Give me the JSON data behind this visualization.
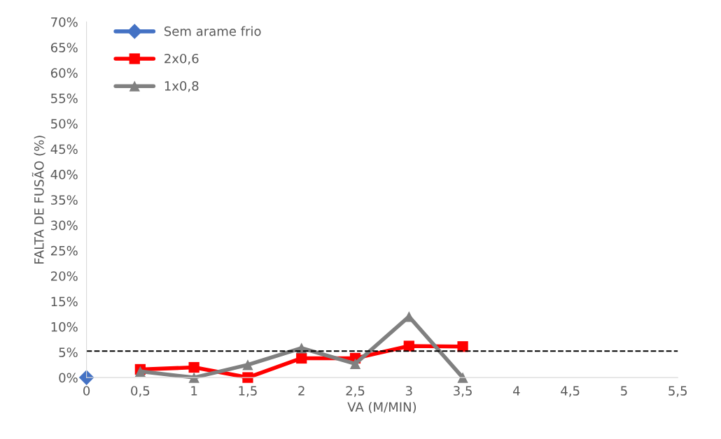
{
  "chart_data": {
    "type": "line",
    "xlabel": "VA (M/MIN)",
    "ylabel": "FALTA DE FUSÃO (%)",
    "xlim": [
      0,
      5.5
    ],
    "xticks": [
      0,
      {
        "value": 0.5,
        "label": "0,5"
      },
      1,
      {
        "value": 1.5,
        "label": "1,5"
      },
      2,
      {
        "value": 2.5,
        "label": "2,5"
      },
      3,
      {
        "value": 3.5,
        "label": "3,5"
      },
      4,
      {
        "value": 4.5,
        "label": "4,5"
      },
      5,
      {
        "value": 5.5,
        "label": "5,5"
      }
    ],
    "ylim": [
      0,
      70
    ],
    "yticks": [
      {
        "value": 0,
        "label": "0%"
      },
      {
        "value": 5,
        "label": "5%"
      },
      {
        "value": 10,
        "label": "10%"
      },
      {
        "value": 15,
        "label": "15%"
      },
      {
        "value": 20,
        "label": "20%"
      },
      {
        "value": 25,
        "label": "25%"
      },
      {
        "value": 30,
        "label": "30%"
      },
      {
        "value": 35,
        "label": "35%"
      },
      {
        "value": 40,
        "label": "40%"
      },
      {
        "value": 45,
        "label": "45%"
      },
      {
        "value": 50,
        "label": "50%"
      },
      {
        "value": 55,
        "label": "55%"
      },
      {
        "value": 60,
        "label": "60%"
      },
      {
        "value": 65,
        "label": "65%"
      },
      {
        "value": 70,
        "label": "70%"
      }
    ],
    "series": [
      {
        "name": "Sem arame frio",
        "color": "#4472c4",
        "marker": "diamond",
        "x": [
          0
        ],
        "values": [
          0
        ]
      },
      {
        "name": "2x0,6",
        "color": "#ff0000",
        "marker": "square",
        "x": [
          0.5,
          1,
          1.5,
          2,
          2.5,
          3,
          3.5
        ],
        "values": [
          1.6,
          2.0,
          0,
          3.8,
          3.8,
          6.2,
          6.1
        ]
      },
      {
        "name": "1x0,8",
        "color": "#808080",
        "marker": "triangle",
        "x": [
          0.5,
          1,
          1.5,
          2,
          2.5,
          3,
          3.5
        ],
        "values": [
          1.2,
          0,
          2.5,
          5.8,
          2.7,
          12,
          0
        ]
      }
    ],
    "ref_lines": [
      {
        "axis": "y",
        "value": 5.2,
        "color": "#000000",
        "line_style": "dashed"
      }
    ],
    "legend": "top left",
    "grid": false
  }
}
